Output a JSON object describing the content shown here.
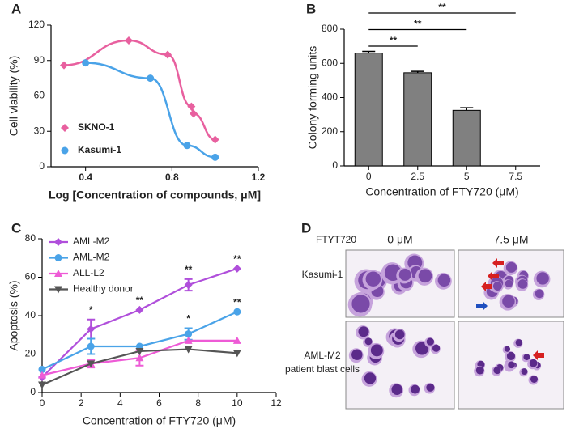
{
  "chart_data": [
    {
      "type": "scatter",
      "panel": "A",
      "xlabel": "Log [Concentration of compounds, μM]",
      "ylabel": "Cell viability (%)",
      "xlim": [
        0.24,
        1.2
      ],
      "xticks": [
        0.4,
        0.8,
        1.2
      ],
      "ylim": [
        0,
        120
      ],
      "yticks": [
        0,
        30,
        60,
        90,
        120
      ],
      "series": [
        {
          "name": "SKNO-1",
          "color": "#e8609f",
          "marker": "diamond",
          "x": [
            0.3,
            0.6,
            0.78,
            0.89,
            0.9,
            1.0
          ],
          "values": [
            86,
            107,
            95,
            51,
            45,
            23
          ]
        },
        {
          "name": "Kasumi-1",
          "color": "#4aa3e8",
          "marker": "circle",
          "x": [
            0.4,
            0.7,
            0.87,
            1.0
          ],
          "values": [
            88,
            75,
            18,
            8
          ]
        }
      ]
    },
    {
      "type": "bar",
      "panel": "B",
      "xlabel": "Concentration of FTY720 (μM)",
      "ylabel": "Colony forming units",
      "categories": [
        "0",
        "2.5",
        "5",
        "7.5"
      ],
      "values": [
        660,
        545,
        325,
        null
      ],
      "errors": [
        10,
        8,
        15,
        null
      ],
      "color": "#808080",
      "ylim": [
        0,
        800
      ],
      "yticks": [
        0,
        200,
        400,
        600,
        800
      ],
      "significance": [
        "**",
        "**",
        "**"
      ]
    },
    {
      "type": "line",
      "panel": "C",
      "xlabel": "Concentration of FTY720 (μM)",
      "ylabel": "Apoptosis (%)",
      "x": [
        0,
        2.5,
        5,
        7.5,
        10
      ],
      "xlim": [
        0,
        12
      ],
      "xticks": [
        0,
        2,
        4,
        6,
        8,
        10,
        12
      ],
      "ylim": [
        0,
        80
      ],
      "yticks": [
        0,
        20,
        40,
        60,
        80
      ],
      "series": [
        {
          "name": "AML-M2",
          "color": "#b04fdb",
          "marker": "diamond",
          "values": [
            8,
            33,
            43,
            56,
            64.5
          ],
          "errors": [
            0,
            5,
            0,
            3,
            0
          ],
          "significance": [
            null,
            "*",
            "**",
            "**",
            "**"
          ]
        },
        {
          "name": "AML-M2",
          "color": "#4aa3e8",
          "marker": "circle",
          "values": [
            12,
            24,
            24,
            30.5,
            42
          ],
          "errors": [
            0,
            4,
            0,
            3,
            0
          ],
          "significance": [
            null,
            null,
            null,
            "*",
            "**"
          ]
        },
        {
          "name": "ALL-L2",
          "color": "#ee5bd6",
          "marker": "triangle-up",
          "values": [
            9,
            15,
            18,
            27,
            27
          ],
          "errors": [
            0,
            2,
            4,
            0,
            0
          ]
        },
        {
          "name": "Healthy donor",
          "color": "#555555",
          "marker": "triangle-down",
          "values": [
            4,
            15,
            21.5,
            22.5,
            20.5
          ],
          "errors": [
            0,
            0,
            0,
            0,
            0
          ]
        }
      ]
    }
  ],
  "image_panel": {
    "panel": "D",
    "treatment": "FTYT720",
    "columns": [
      "0 μM",
      "7.5 μM"
    ],
    "rows": [
      {
        "label": "Kasumi-1"
      },
      {
        "label": "AML-M2",
        "sublabel": "patient blast cells"
      }
    ]
  }
}
